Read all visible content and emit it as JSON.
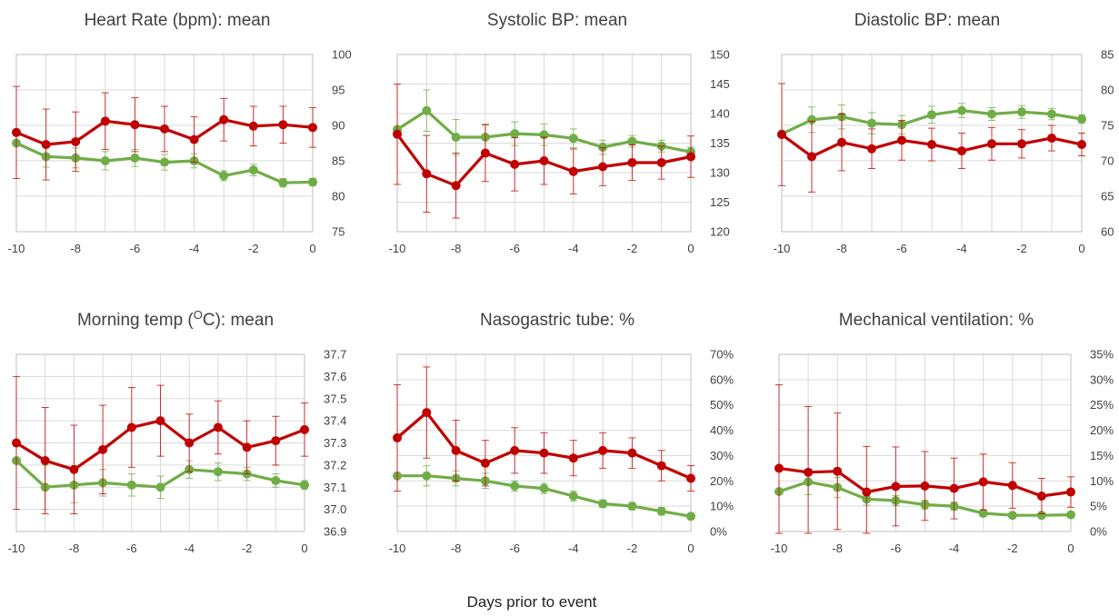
{
  "xlabel": "Days prior to event",
  "colors": {
    "red": "#C00000",
    "green": "#70AD47",
    "grid": "#D9D9D9",
    "axis": "#BFBFBF"
  },
  "chart_data": [
    {
      "type": "line",
      "title": "Heart Rate (bpm): mean",
      "x": [
        -10,
        -9,
        -8,
        -7,
        -6,
        -5,
        -4,
        -3,
        -2,
        -1,
        0
      ],
      "xticks": [
        -10,
        -8,
        -6,
        -4,
        -2,
        0
      ],
      "xtick_labels": [
        "-10",
        "-8",
        "-6",
        "-4",
        "-2",
        "0"
      ],
      "ylim": [
        75,
        100
      ],
      "yticks": [
        75,
        80,
        85,
        90,
        95,
        100
      ],
      "ytick_labels": [
        "75",
        "80",
        "85",
        "90",
        "95",
        "100"
      ],
      "series": [
        {
          "color": "red",
          "values": [
            89.0,
            87.3,
            87.7,
            90.6,
            90.1,
            89.5,
            88.0,
            90.8,
            89.9,
            90.1,
            89.7
          ],
          "err": [
            6.5,
            5.0,
            4.2,
            4.0,
            3.8,
            3.2,
            3.2,
            3.0,
            2.8,
            2.6,
            2.8
          ]
        },
        {
          "color": "green",
          "values": [
            87.5,
            85.6,
            85.4,
            85.0,
            85.4,
            84.8,
            85.0,
            82.9,
            83.7,
            81.9,
            82.0
          ],
          "err": [
            0,
            1.5,
            1.4,
            1.3,
            1.2,
            1.1,
            1.0,
            0.7,
            0.8,
            0.6,
            0.5
          ]
        }
      ]
    },
    {
      "type": "line",
      "title": "Systolic BP: mean",
      "x": [
        -10,
        -9,
        -8,
        -7,
        -6,
        -5,
        -4,
        -3,
        -2,
        -1,
        0
      ],
      "xticks": [
        -10,
        -8,
        -6,
        -4,
        -2,
        0
      ],
      "xtick_labels": [
        "-10",
        "-8",
        "-6",
        "-4",
        "-2",
        "0"
      ],
      "ylim": [
        120,
        150
      ],
      "yticks": [
        120,
        125,
        130,
        135,
        140,
        145,
        150
      ],
      "ytick_labels": [
        "120",
        "125",
        "130",
        "135",
        "140",
        "145",
        "150"
      ],
      "series": [
        {
          "color": "red",
          "values": [
            136.5,
            129.8,
            127.8,
            133.3,
            131.4,
            132.0,
            130.2,
            131.0,
            131.7,
            131.7,
            132.7
          ],
          "err": [
            8.5,
            6.5,
            5.5,
            4.8,
            4.5,
            4.0,
            3.8,
            3.2,
            3.0,
            2.8,
            3.5
          ]
        },
        {
          "color": "green",
          "values": [
            137.3,
            140.5,
            136.0,
            136.0,
            136.6,
            136.4,
            135.8,
            134.3,
            135.3,
            134.5,
            133.5
          ],
          "err": [
            0,
            3.5,
            3.0,
            2.2,
            2.0,
            1.8,
            1.6,
            1.2,
            1.0,
            1.0,
            0.8
          ]
        }
      ]
    },
    {
      "type": "line",
      "title": "Diastolic BP: mean",
      "x": [
        -10,
        -9,
        -8,
        -7,
        -6,
        -5,
        -4,
        -3,
        -2,
        -1,
        0
      ],
      "xticks": [
        -10,
        -8,
        -6,
        -4,
        -2,
        0
      ],
      "xtick_labels": [
        "-10",
        "-8",
        "-6",
        "-4",
        "-2",
        "0"
      ],
      "ylim": [
        60,
        85
      ],
      "yticks": [
        60,
        65,
        70,
        75,
        80,
        85
      ],
      "ytick_labels": [
        "60",
        "65",
        "70",
        "75",
        "80",
        "85"
      ],
      "series": [
        {
          "color": "red",
          "values": [
            73.7,
            70.6,
            72.6,
            71.7,
            72.9,
            72.3,
            71.4,
            72.4,
            72.4,
            73.2,
            72.3
          ],
          "err": [
            7.2,
            5.0,
            4.0,
            2.8,
            2.8,
            2.3,
            2.5,
            2.3,
            2.0,
            1.8,
            1.6
          ]
        },
        {
          "color": "green",
          "values": [
            73.8,
            75.8,
            76.2,
            75.3,
            75.1,
            76.5,
            77.1,
            76.6,
            76.9,
            76.6,
            75.9
          ],
          "err": [
            0,
            1.8,
            1.7,
            1.5,
            1.3,
            1.2,
            1.0,
            0.9,
            0.9,
            0.8,
            0.6
          ]
        }
      ]
    },
    {
      "type": "line",
      "title": "Morning temp (OC): mean",
      "title_parts": {
        "before": "Morning temp (",
        "sup": "O",
        "after": "C): mean"
      },
      "x": [
        -10,
        -9,
        -8,
        -7,
        -6,
        -5,
        -4,
        -3,
        -2,
        -1,
        0
      ],
      "xticks": [
        -10,
        -8,
        -6,
        -4,
        -2,
        0
      ],
      "xtick_labels": [
        "-10",
        "-8",
        "-6",
        "-4",
        "-2",
        "0"
      ],
      "ylim": [
        36.9,
        37.7
      ],
      "yticks": [
        36.9,
        37.0,
        37.1,
        37.2,
        37.3,
        37.4,
        37.5,
        37.6,
        37.7
      ],
      "ytick_labels": [
        "36.9",
        "37.0",
        "37.1",
        "37.2",
        "37.3",
        "37.4",
        "37.5",
        "37.6",
        "37.7"
      ],
      "series": [
        {
          "color": "red",
          "values": [
            37.3,
            37.22,
            37.18,
            37.27,
            37.37,
            37.4,
            37.3,
            37.37,
            37.28,
            37.31,
            37.36
          ],
          "err": [
            0.3,
            0.24,
            0.2,
            0.2,
            0.18,
            0.16,
            0.13,
            0.12,
            0.12,
            0.11,
            0.12
          ]
        },
        {
          "color": "green",
          "values": [
            37.22,
            37.1,
            37.11,
            37.12,
            37.11,
            37.1,
            37.18,
            37.17,
            37.16,
            37.13,
            37.11
          ],
          "err": [
            0,
            0.1,
            0.08,
            0.06,
            0.05,
            0.05,
            0.04,
            0.04,
            0.03,
            0.03,
            0.02
          ]
        }
      ]
    },
    {
      "type": "line",
      "title": "Nasogastric tube: %",
      "x": [
        -10,
        -9,
        -8,
        -7,
        -6,
        -5,
        -4,
        -3,
        -2,
        -1,
        0
      ],
      "xticks": [
        -10,
        -8,
        -6,
        -4,
        -2,
        0
      ],
      "xtick_labels": [
        "-10",
        "-8",
        "-6",
        "-4",
        "-2",
        "0"
      ],
      "ylim": [
        0,
        70
      ],
      "yticks": [
        0,
        10,
        20,
        30,
        40,
        50,
        60,
        70
      ],
      "ytick_labels": [
        "0%",
        "10%",
        "20%",
        "30%",
        "40%",
        "50%",
        "60%",
        "70%"
      ],
      "series": [
        {
          "color": "red",
          "values": [
            37,
            47,
            32,
            27,
            32,
            31,
            29,
            32,
            31,
            26,
            21
          ],
          "err": [
            21,
            18,
            12,
            9,
            9,
            8,
            7,
            7,
            6,
            6,
            5
          ]
        },
        {
          "color": "green",
          "values": [
            22,
            22,
            21,
            20,
            18,
            17,
            14,
            11,
            10,
            8,
            6
          ],
          "err": [
            0,
            4,
            3,
            3,
            2,
            2,
            2,
            1.5,
            1.5,
            1.5,
            1
          ]
        }
      ]
    },
    {
      "type": "line",
      "title": "Mechanical ventilation: %",
      "x": [
        -10,
        -9,
        -8,
        -7,
        -6,
        -5,
        -4,
        -3,
        -2,
        -1,
        0
      ],
      "xticks": [
        -10,
        -8,
        -6,
        -4,
        -2,
        0
      ],
      "xtick_labels": [
        "-10",
        "-8",
        "-6",
        "-4",
        "-2",
        "0"
      ],
      "ylim": [
        0,
        35
      ],
      "yticks": [
        0,
        5,
        10,
        15,
        20,
        25,
        30,
        35
      ],
      "ytick_labels": [
        "0%",
        "5%",
        "10%",
        "15%",
        "20%",
        "25%",
        "30%",
        "35%"
      ],
      "series": [
        {
          "color": "red",
          "values": [
            12.5,
            11.7,
            11.9,
            7.8,
            8.9,
            9.0,
            8.5,
            9.8,
            9.1,
            7.0,
            7.8
          ],
          "err": [
            16.5,
            13.0,
            11.5,
            9.0,
            7.8,
            6.8,
            6.0,
            5.5,
            4.5,
            3.5,
            3.0
          ]
        },
        {
          "color": "green",
          "values": [
            7.9,
            9.8,
            8.7,
            6.4,
            6.1,
            5.3,
            5.0,
            3.6,
            3.2,
            3.2,
            3.3
          ],
          "err": [
            0,
            2.5,
            2.0,
            1.2,
            1.0,
            0.9,
            0.8,
            0.6,
            0.5,
            0.5,
            0.5
          ]
        }
      ]
    }
  ]
}
